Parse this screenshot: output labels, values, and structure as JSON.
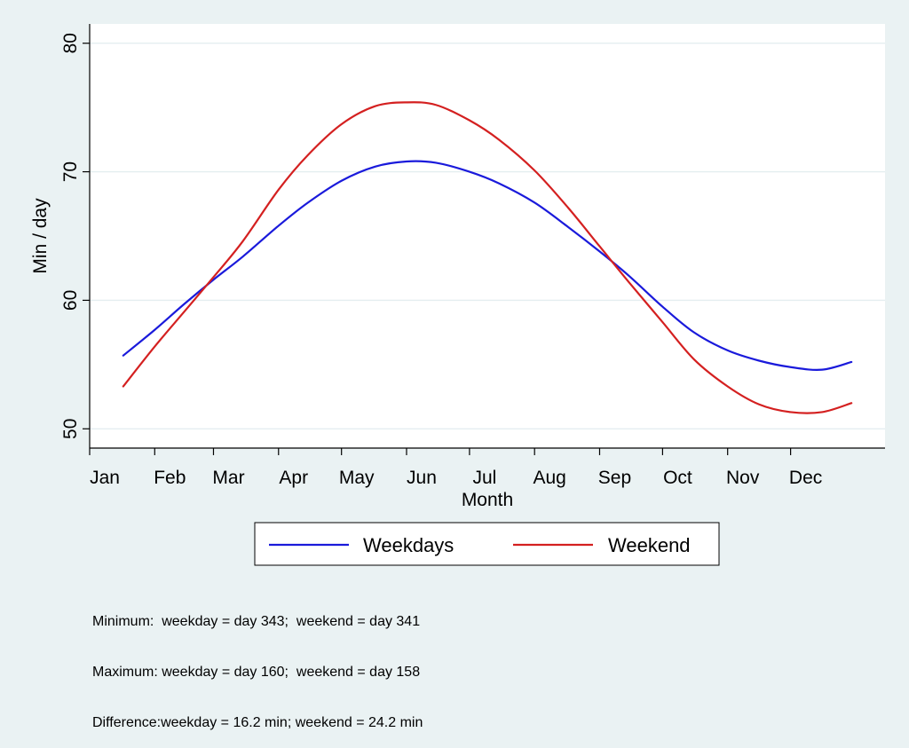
{
  "chart_data": {
    "type": "line",
    "title": "",
    "xlabel": "Month",
    "ylabel": "Min / day",
    "xlim": [
      1,
      365
    ],
    "ylim": [
      48.5,
      81.5
    ],
    "x_ticks": [
      {
        "label": "Jan",
        "day": 1
      },
      {
        "label": "Feb",
        "day": 32
      },
      {
        "label": "Mar",
        "day": 60
      },
      {
        "label": "Apr",
        "day": 91
      },
      {
        "label": "May",
        "day": 121
      },
      {
        "label": "Jun",
        "day": 152
      },
      {
        "label": "Jul",
        "day": 182
      },
      {
        "label": "Aug",
        "day": 213
      },
      {
        "label": "Sep",
        "day": 244
      },
      {
        "label": "Oct",
        "day": 274
      },
      {
        "label": "Nov",
        "day": 305
      },
      {
        "label": "Dec",
        "day": 335
      }
    ],
    "y_ticks": [
      {
        "label": "50",
        "value": 50
      },
      {
        "label": "60",
        "value": 60
      },
      {
        "label": "70",
        "value": 70
      },
      {
        "label": "80",
        "value": 80
      }
    ],
    "series": [
      {
        "name": "Weekdays",
        "color": "#1a1adb",
        "x": [
          17,
          32,
          46,
          60,
          74,
          91,
          105,
          121,
          137,
          152,
          166,
          182,
          196,
          213,
          229,
          244,
          258,
          274,
          289,
          305,
          320,
          335,
          350,
          364
        ],
        "y": [
          55.7,
          57.7,
          59.7,
          61.6,
          63.4,
          65.8,
          67.6,
          69.3,
          70.4,
          70.8,
          70.7,
          70.0,
          69.1,
          67.6,
          65.7,
          63.8,
          61.9,
          59.5,
          57.5,
          56.1,
          55.3,
          54.8,
          54.6,
          55.2
        ]
      },
      {
        "name": "Weekend",
        "color": "#d42020",
        "x": [
          17,
          32,
          46,
          60,
          74,
          91,
          105,
          121,
          137,
          152,
          166,
          182,
          196,
          213,
          229,
          244,
          258,
          274,
          289,
          305,
          320,
          335,
          350,
          364
        ],
        "y": [
          53.3,
          56.4,
          59.1,
          61.8,
          64.6,
          68.6,
          71.3,
          73.7,
          75.1,
          75.4,
          75.2,
          74.0,
          72.5,
          70.1,
          67.2,
          64.2,
          61.4,
          58.3,
          55.4,
          53.3,
          51.9,
          51.3,
          51.3,
          52.0
        ]
      }
    ],
    "legend_position": "bottom",
    "grid": true
  },
  "notes": [
    "Minimum:  weekday = day 343;  weekend = day 341",
    "Maximum: weekday = day 160;  weekend = day 158",
    "Difference:weekday = 16.2 min; weekend = 24.2 min"
  ]
}
